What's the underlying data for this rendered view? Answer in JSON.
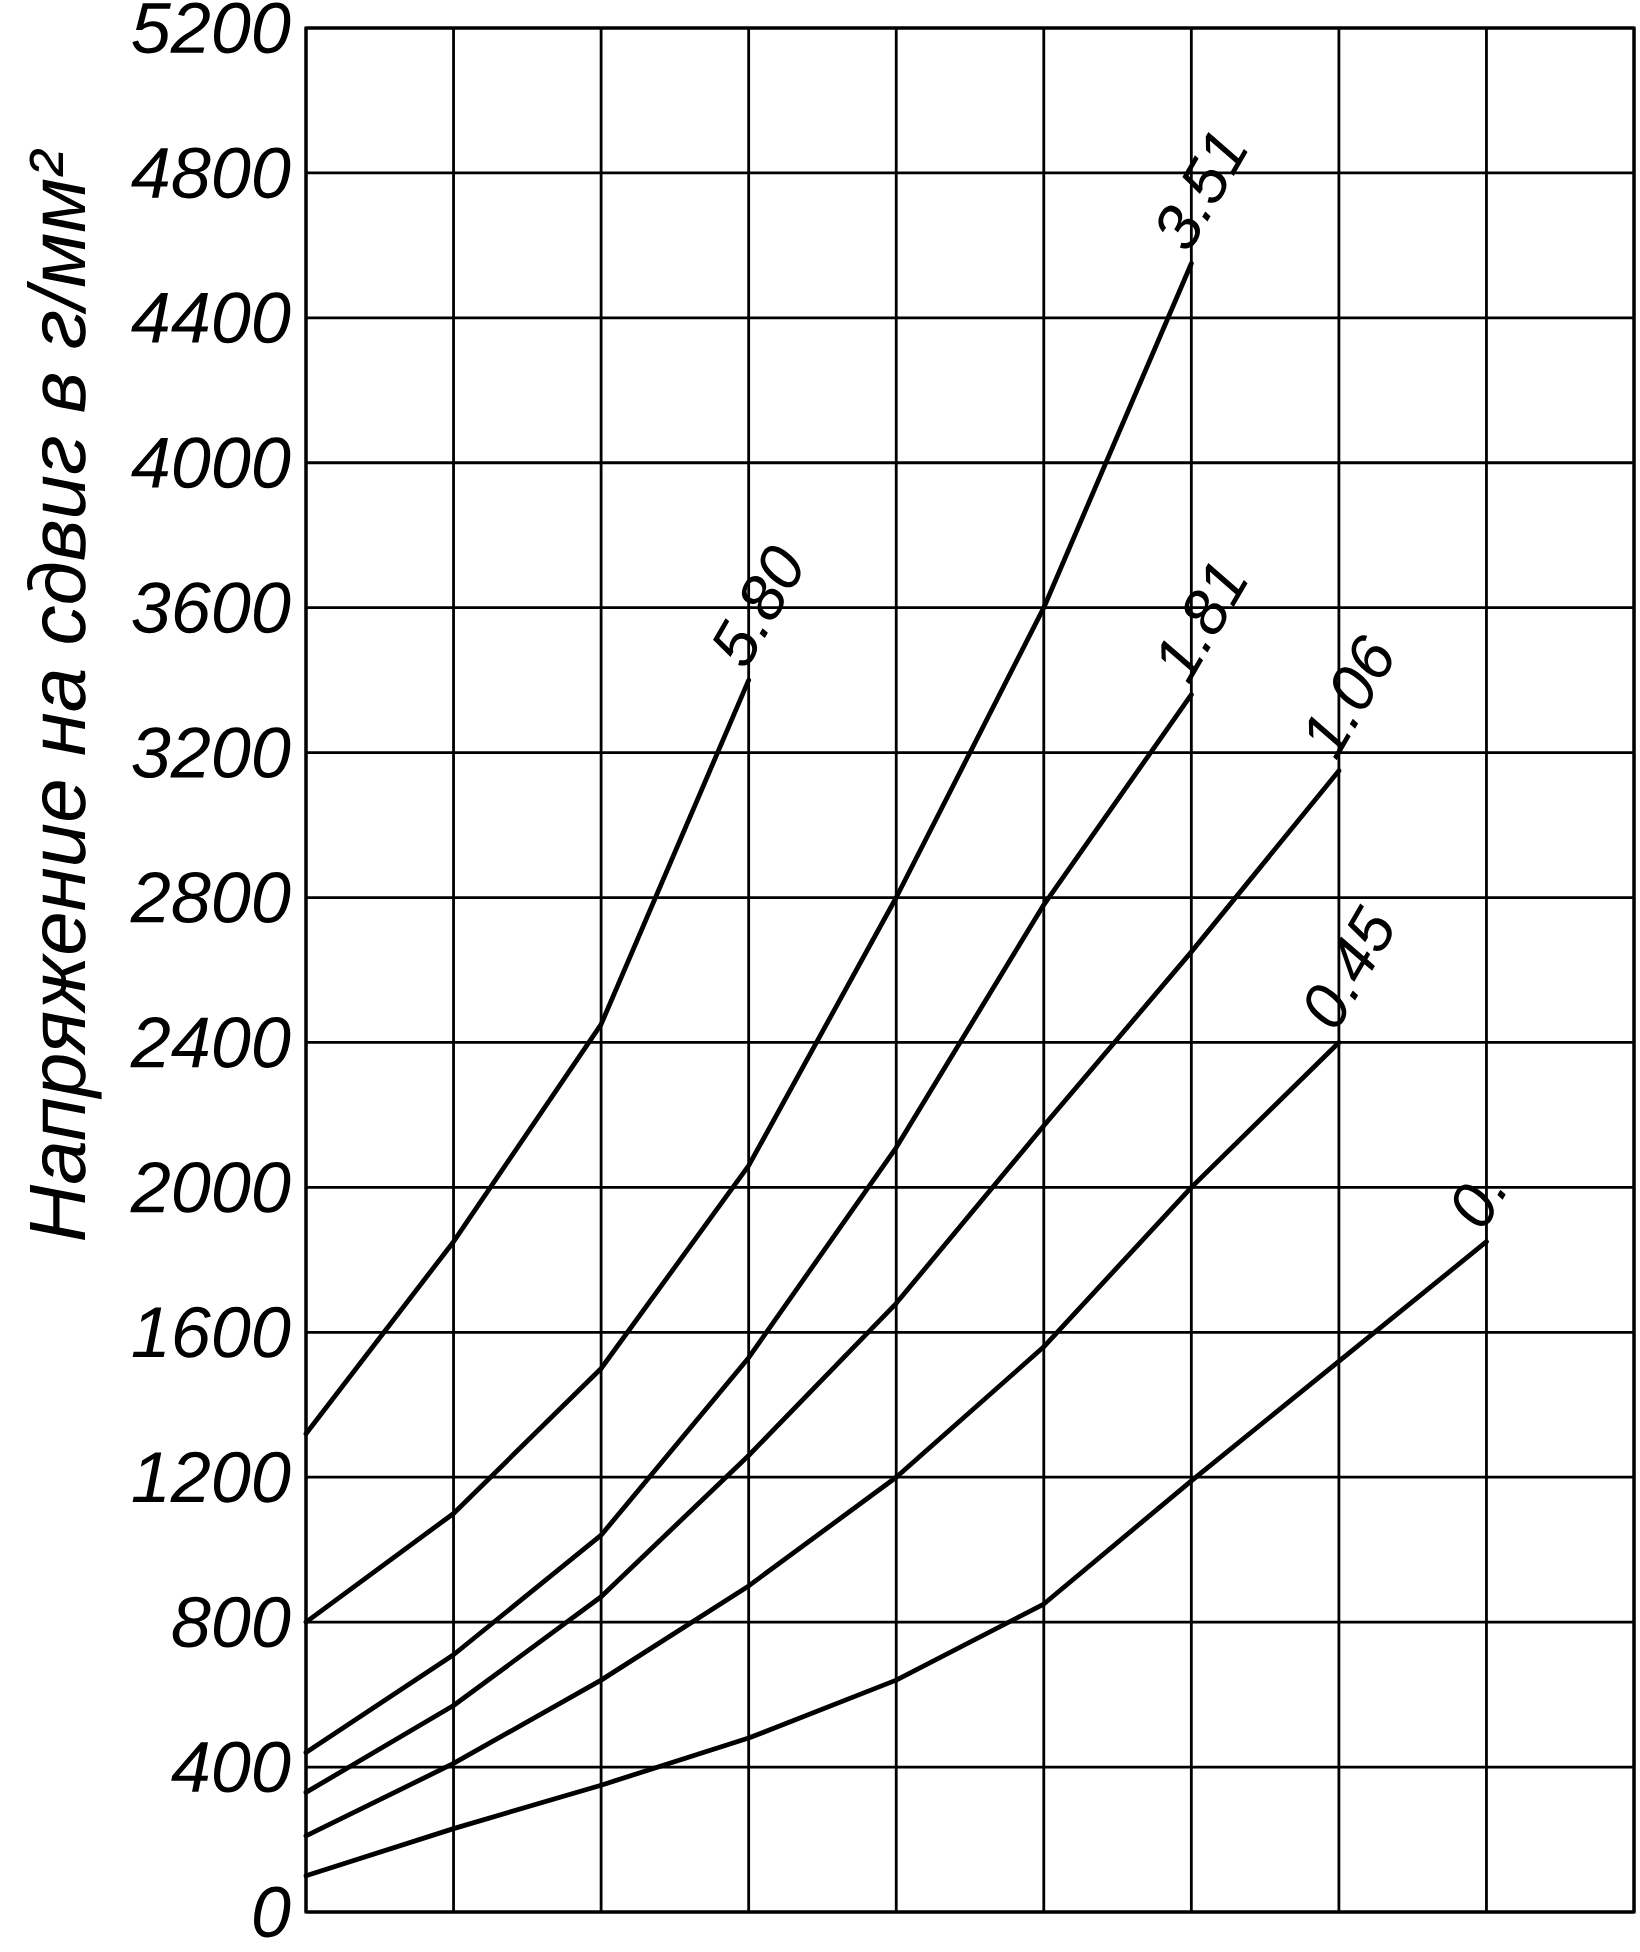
{
  "chart_data": {
    "type": "line",
    "ylabel": "Напряжение на сдвиг в г/мм²",
    "categories": [
      null,
      null,
      null,
      null,
      null,
      null,
      null,
      null,
      null,
      null
    ],
    "ylim": [
      0,
      5200
    ],
    "yticks": [
      0,
      400,
      800,
      1200,
      1600,
      2000,
      2400,
      2800,
      3200,
      3600,
      4000,
      4400,
      4800,
      5200
    ],
    "grid": true,
    "series": [
      {
        "name": "0.",
        "color": "#000000",
        "values": [
          100,
          230,
          350,
          480,
          640,
          850,
          1190,
          1520,
          1850,
          null
        ]
      },
      {
        "name": "0.45",
        "color": "#000000",
        "values": [
          210,
          410,
          640,
          900,
          1200,
          1560,
          2000,
          2400,
          null,
          null
        ]
      },
      {
        "name": "1.06",
        "color": "#000000",
        "values": [
          330,
          570,
          870,
          1260,
          1680,
          2170,
          2650,
          3150,
          null,
          null
        ]
      },
      {
        "name": "1.81",
        "color": "#000000",
        "values": [
          440,
          710,
          1040,
          1530,
          2110,
          2780,
          3360,
          null,
          null,
          null
        ]
      },
      {
        "name": "3.51",
        "color": "#000000",
        "values": [
          800,
          1100,
          1500,
          2060,
          2800,
          3600,
          4550,
          null,
          null,
          null
        ]
      },
      {
        "name": "5.80",
        "color": "#000000",
        "values": [
          1320,
          1850,
          2450,
          3400,
          null,
          null,
          null,
          null,
          null,
          null
        ]
      }
    ]
  }
}
